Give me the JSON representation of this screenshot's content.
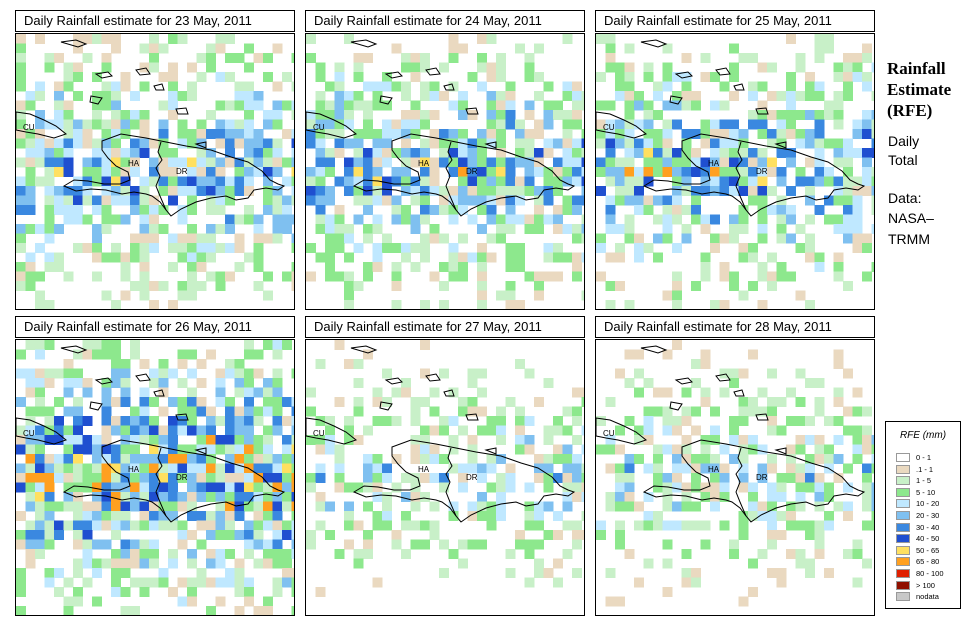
{
  "panels": [
    {
      "title": "Daily Rainfall estimate for  23 May, 2011",
      "seed": 23
    },
    {
      "title": "Daily Rainfall estimate for  24 May, 2011",
      "seed": 24
    },
    {
      "title": "Daily Rainfall estimate for  25 May, 2011",
      "seed": 25
    },
    {
      "title": "Daily Rainfall estimate for  26 May, 2011",
      "seed": 26
    },
    {
      "title": "Daily Rainfall estimate for  27 May, 2011",
      "seed": 27
    },
    {
      "title": "Daily Rainfall estimate for  28 May, 2011",
      "seed": 28
    }
  ],
  "labels": {
    "cuba": "CU",
    "haiti": "HA",
    "dominican_republic": "DR"
  },
  "side": {
    "title_line1": "Rainfall",
    "title_line2": "Estimate",
    "title_line3": "(RFE)",
    "line1": "Daily",
    "line2": "Total",
    "line3": "Data:",
    "line4": "NASA–",
    "line5": "TRMM"
  },
  "legend": {
    "title": "RFE (mm)",
    "entries": [
      {
        "label": "0 - 1",
        "color": "#ffffff"
      },
      {
        "label": ".1 - 1",
        "color": "#ead9c0"
      },
      {
        "label": "1 - 5",
        "color": "#c8f0c8"
      },
      {
        "label": "5 - 10",
        "color": "#8de88d"
      },
      {
        "label": "10 - 20",
        "color": "#bfe8ff"
      },
      {
        "label": "20 - 30",
        "color": "#7fc0f0"
      },
      {
        "label": "30 - 40",
        "color": "#3a88e0"
      },
      {
        "label": "40 - 50",
        "color": "#1f4fd0"
      },
      {
        "label": "50 - 65",
        "color": "#ffe060"
      },
      {
        "label": "65 - 80",
        "color": "#ffa020"
      },
      {
        "label": "80 - 100",
        "color": "#e02000"
      },
      {
        "label": "> 100",
        "color": "#901000"
      },
      {
        "label": "nodata",
        "color": "#c8c8c8"
      }
    ]
  }
}
